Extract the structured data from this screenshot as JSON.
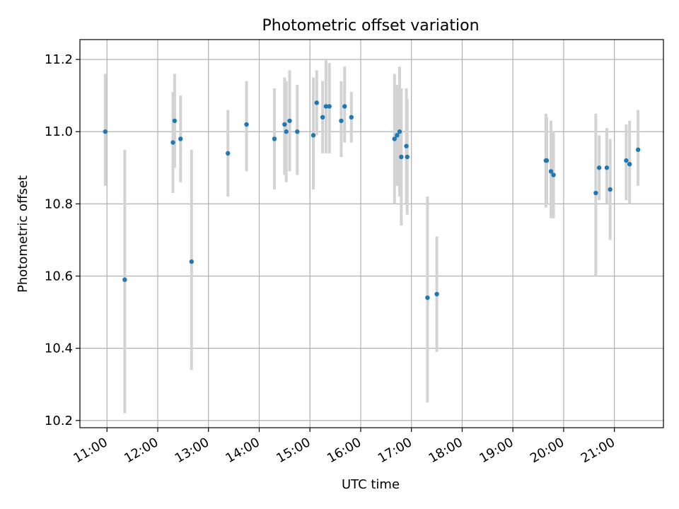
{
  "chart_data": {
    "type": "scatter",
    "title": "Photometric offset variation",
    "xlabel": "UTC time",
    "ylabel": "Photometric offset",
    "xlim": [
      "10:28",
      "21:58"
    ],
    "ylim": [
      10.18,
      11.255
    ],
    "x_ticks": [
      "11:00",
      "12:00",
      "13:00",
      "14:00",
      "15:00",
      "16:00",
      "17:00",
      "18:00",
      "19:00",
      "20:00",
      "21:00"
    ],
    "y_ticks": [
      10.2,
      10.4,
      10.6,
      10.8,
      11.0,
      11.2
    ],
    "y_tick_labels": [
      "10.2",
      "10.4",
      "10.6",
      "10.8",
      "11.0",
      "11.2"
    ],
    "grid": true,
    "colors": {
      "points": "#1f77b4",
      "error_bars": "#d3d3d3",
      "grid": "#b0b0b0"
    },
    "points": [
      {
        "x": "10:58",
        "y": 11.0,
        "lo": 10.85,
        "hi": 11.16
      },
      {
        "x": "11:21",
        "y": 10.59,
        "lo": 10.22,
        "hi": 10.95
      },
      {
        "x": "12:18",
        "y": 10.97,
        "lo": 10.83,
        "hi": 11.11
      },
      {
        "x": "12:20",
        "y": 11.03,
        "lo": 10.9,
        "hi": 11.16
      },
      {
        "x": "12:27",
        "y": 10.98,
        "lo": 10.86,
        "hi": 11.1
      },
      {
        "x": "12:40",
        "y": 10.64,
        "lo": 10.34,
        "hi": 10.95
      },
      {
        "x": "13:23",
        "y": 10.94,
        "lo": 10.82,
        "hi": 11.06
      },
      {
        "x": "13:45",
        "y": 11.02,
        "lo": 10.89,
        "hi": 11.14
      },
      {
        "x": "14:18",
        "y": 10.98,
        "lo": 10.84,
        "hi": 11.12
      },
      {
        "x": "14:30",
        "y": 11.02,
        "lo": 10.88,
        "hi": 11.15
      },
      {
        "x": "14:32",
        "y": 11.0,
        "lo": 10.86,
        "hi": 11.14
      },
      {
        "x": "14:36",
        "y": 11.03,
        "lo": 10.89,
        "hi": 11.17
      },
      {
        "x": "14:45",
        "y": 11.0,
        "lo": 10.88,
        "hi": 11.13
      },
      {
        "x": "15:04",
        "y": 10.99,
        "lo": 10.84,
        "hi": 11.15
      },
      {
        "x": "15:08",
        "y": 11.08,
        "lo": 10.99,
        "hi": 11.17
      },
      {
        "x": "15:15",
        "y": 11.04,
        "lo": 10.94,
        "hi": 11.14
      },
      {
        "x": "15:19",
        "y": 11.07,
        "lo": 10.94,
        "hi": 11.2
      },
      {
        "x": "15:23",
        "y": 11.07,
        "lo": 10.94,
        "hi": 11.19
      },
      {
        "x": "15:37",
        "y": 11.03,
        "lo": 10.93,
        "hi": 11.14
      },
      {
        "x": "15:41",
        "y": 11.07,
        "lo": 10.97,
        "hi": 11.18
      },
      {
        "x": "15:49",
        "y": 11.04,
        "lo": 10.97,
        "hi": 11.11
      },
      {
        "x": "16:40",
        "y": 10.98,
        "lo": 10.8,
        "hi": 11.16
      },
      {
        "x": "16:43",
        "y": 10.99,
        "lo": 10.85,
        "hi": 11.13
      },
      {
        "x": "16:46",
        "y": 11.0,
        "lo": 10.82,
        "hi": 11.18
      },
      {
        "x": "16:48",
        "y": 10.93,
        "lo": 10.74,
        "hi": 11.12
      },
      {
        "x": "16:54",
        "y": 10.96,
        "lo": 10.8,
        "hi": 11.12
      },
      {
        "x": "16:55",
        "y": 10.93,
        "lo": 10.77,
        "hi": 11.09
      },
      {
        "x": "17:19",
        "y": 10.54,
        "lo": 10.25,
        "hi": 10.82
      },
      {
        "x": "17:30",
        "y": 10.55,
        "lo": 10.39,
        "hi": 10.71
      },
      {
        "x": "19:39",
        "y": 10.92,
        "lo": 10.79,
        "hi": 11.05
      },
      {
        "x": "19:40",
        "y": 10.92,
        "lo": 10.8,
        "hi": 11.04
      },
      {
        "x": "19:45",
        "y": 10.89,
        "lo": 10.76,
        "hi": 11.03
      },
      {
        "x": "19:48",
        "y": 10.88,
        "lo": 10.76,
        "hi": 11.0
      },
      {
        "x": "20:38",
        "y": 10.83,
        "lo": 10.6,
        "hi": 11.05
      },
      {
        "x": "20:42",
        "y": 10.9,
        "lo": 10.81,
        "hi": 10.99
      },
      {
        "x": "20:51",
        "y": 10.9,
        "lo": 10.8,
        "hi": 11.01
      },
      {
        "x": "20:55",
        "y": 10.84,
        "lo": 10.7,
        "hi": 10.98
      },
      {
        "x": "21:14",
        "y": 10.92,
        "lo": 10.81,
        "hi": 11.02
      },
      {
        "x": "21:18",
        "y": 10.91,
        "lo": 10.8,
        "hi": 11.03
      },
      {
        "x": "21:28",
        "y": 10.95,
        "lo": 10.85,
        "hi": 11.06
      }
    ]
  }
}
